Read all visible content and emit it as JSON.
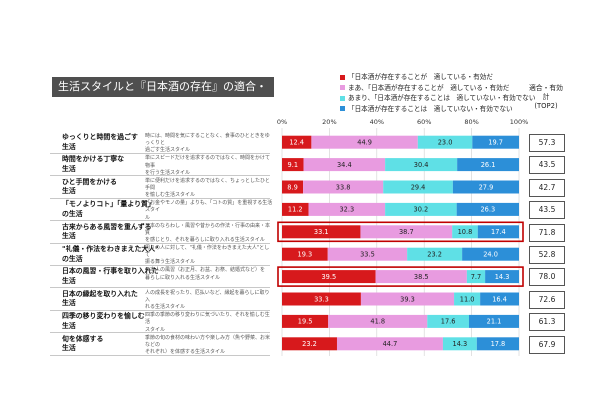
{
  "title": "生活スタイルと『日本酒の存在』の適合・有効度",
  "top2_header": [
    "適合・有効",
    "計",
    "(TOP2)"
  ],
  "legend": [
    {
      "label": "「日本酒が存在することが　適している・有効だ",
      "color": "#d7191c"
    },
    {
      "label": "まあ、「日本酒が存在することが　適している・有効だ",
      "color": "#e89be0"
    },
    {
      "label": "あまり、「日本酒が存在することは　適していない・有効でない",
      "color": "#5fe0e6"
    },
    {
      "label": "「日本酒が存在することは　適していない・有効でない",
      "color": "#2c8fd8"
    }
  ],
  "rows": [
    {
      "lifestyle": [
        "ゆっくりと時間を過ごす",
        "生活"
      ],
      "desc": [
        "時には、時間を気にすることなく、食事のひとときをゆっくりと",
        "過ごす生活スタイル"
      ],
      "top2": "57.3",
      "highlight": false
    },
    {
      "lifestyle": [
        "時間をかける丁寧な",
        "生活"
      ],
      "desc": [
        "単にスピードだけを追求するのではなく、時間をかけて物事",
        "を行う生活スタイル"
      ],
      "top2": "43.5",
      "highlight": false
    },
    {
      "lifestyle": [
        "ひと手間をかける",
        "生活"
      ],
      "desc": [
        "単に便利だけを追求するのではなく、ちょっとしたひと手間",
        "を愉しむ生活スタイル"
      ],
      "top2": "42.7",
      "highlight": false
    },
    {
      "lifestyle": [
        "「モノよりコト」「量より質」",
        "の生活"
      ],
      "desc": [
        "「お金やモノの量」よりも、「コトの質」を重視する生活スタイ",
        "ル"
      ],
      "top2": "43.5",
      "highlight": false
    },
    {
      "lifestyle": [
        "古来からある風習を重んずる",
        "生活"
      ],
      "desc": [
        "日本のならわし・風習や昔からの作法・行事の由来・本質",
        "を感じとり、それを暮らしに取り入れる生活スタイル"
      ],
      "top2": "71.8",
      "highlight": true
    },
    {
      "lifestyle": [
        "\"礼儀・作法をわきまえた大人\"",
        "の生活"
      ],
      "desc": [
        "周りの人に対して、\"礼儀・作法をわきまえた大人\"として",
        "振る舞う生活スタイル"
      ],
      "top2": "52.8",
      "highlight": false
    },
    {
      "lifestyle": [
        "日本の風習・行事を取り入れた",
        "生活"
      ],
      "desc": [
        "日本人の風習（お正月、お盆、お祭、結婚式など）を",
        "暮らしに取り入れる生活スタイル"
      ],
      "top2": "78.0",
      "highlight": true
    },
    {
      "lifestyle": [
        "日本の縁起を取り入れた",
        "生活"
      ],
      "desc": [
        "人の成長を祝ったり、厄払いなど、縁起を暮らしに取り入",
        "れる生活スタイル"
      ],
      "top2": "72.6",
      "highlight": false
    },
    {
      "lifestyle": [
        "四季の移り変わりを愉しむ",
        "生活"
      ],
      "desc": [
        "四季の季節の移り変わりに気づいたり、それを愉しむ生活",
        "スタイル"
      ],
      "top2": "61.3",
      "highlight": false
    },
    {
      "lifestyle": [
        "旬を体感する",
        "生活"
      ],
      "desc": [
        "季節の旬の食材の味わい方や楽しみ方（魚や野菜、お米などの",
        "それぞれ）を体感する生活スタイル"
      ],
      "top2": "67.9",
      "highlight": false
    }
  ],
  "chart_data": {
    "type": "bar",
    "orientation": "horizontal",
    "stacked": true,
    "xlim": [
      0,
      100
    ],
    "x_ticks": [
      "0%",
      "20%",
      "40%",
      "60%",
      "80%",
      "100%"
    ],
    "categories": [
      "ゆっくりと時間を過ごす生活",
      "時間をかける丁寧な生活",
      "ひと手間をかける生活",
      "「モノよりコト」「量より質」の生活",
      "古来からある風習を重んずる生活",
      "\"礼儀・作法をわきまえた大人\"の生活",
      "日本の風習・行事を取り入れた生活",
      "日本の縁起を取り入れた生活",
      "四季の移り変わりを愉しむ生活",
      "旬を体感する生活"
    ],
    "series": [
      {
        "name": "「日本酒が存在することが　適している・有効だ",
        "color": "#d7191c",
        "values": [
          12.4,
          9.1,
          8.9,
          11.2,
          33.1,
          19.3,
          39.5,
          33.3,
          19.5,
          23.2
        ]
      },
      {
        "name": "まあ、「日本酒が存在することが　適している・有効だ",
        "color": "#e89be0",
        "values": [
          44.9,
          34.4,
          33.8,
          32.3,
          38.7,
          33.5,
          38.5,
          39.3,
          41.8,
          44.7
        ]
      },
      {
        "name": "あまり、「日本酒が存在することは　適していない・有効でない",
        "color": "#5fe0e6",
        "values": [
          23.0,
          30.4,
          29.4,
          30.2,
          10.8,
          23.2,
          7.7,
          11.0,
          17.6,
          14.3
        ]
      },
      {
        "name": "「日本酒が存在することは　適していない・有効でない",
        "color": "#2c8fd8",
        "values": [
          19.7,
          26.1,
          27.9,
          26.3,
          17.4,
          24.0,
          14.3,
          16.4,
          21.1,
          17.8
        ]
      }
    ]
  }
}
